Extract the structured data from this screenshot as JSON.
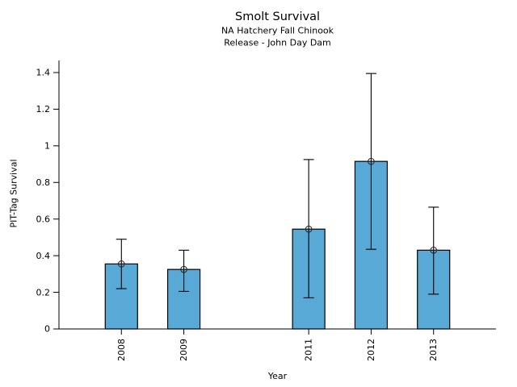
{
  "figure": {
    "background": "#ffffff"
  },
  "chart_data": {
    "type": "bar",
    "title": "Smolt Survival",
    "subtitle_lines": [
      "NA Hatchery Fall Chinook",
      "Release - John Day Dam"
    ],
    "xlabel": "Year",
    "ylabel": "PIT-Tag Survival",
    "categories": [
      "2008",
      "2009",
      "2011",
      "2012",
      "2013"
    ],
    "x": [
      2008,
      2009,
      2011,
      2012,
      2013
    ],
    "values": [
      0.355,
      0.325,
      0.545,
      0.915,
      0.43
    ],
    "error_low": [
      0.22,
      0.205,
      0.17,
      0.435,
      0.19
    ],
    "error_high": [
      0.49,
      0.43,
      0.925,
      1.395,
      0.665
    ],
    "yticks": [
      0,
      0.2,
      0.4,
      0.6,
      0.8,
      1,
      1.2,
      1.4
    ],
    "ytick_labels": [
      "0",
      "0.2",
      "0.4",
      "0.6",
      "0.8",
      "1",
      "1.2",
      "1.4"
    ],
    "xlim": [
      2007,
      2014
    ],
    "ylim": [
      0,
      1.466
    ],
    "grid": false,
    "legend_position": "none",
    "bar_color": "#58A9D5",
    "bar_edge_color": "#000000",
    "errorbar_color": "#000000",
    "marker": "circle-plus",
    "marker_color": "#222222"
  }
}
